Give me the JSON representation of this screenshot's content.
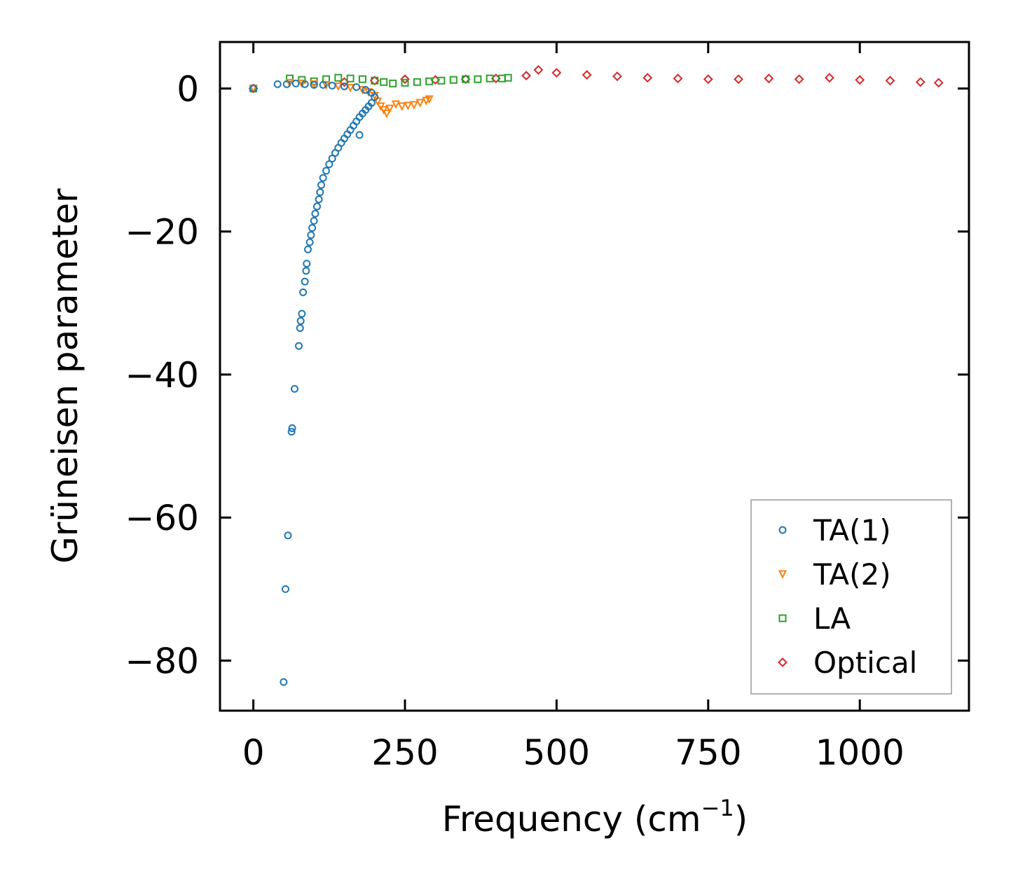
{
  "chart_data": {
    "type": "scatter",
    "xlabel": "Frequency (cm",
    "xlabel_unit_exp": "−1",
    "xlabel_close": ")",
    "ylabel": "Grüneisen parameter",
    "xlim": [
      -55,
      1180
    ],
    "ylim": [
      -87,
      6.5
    ],
    "xticks": [
      0,
      250,
      500,
      750,
      1000
    ],
    "yticks": [
      0,
      -20,
      -40,
      -60,
      -80
    ],
    "xtick_labels": [
      "0",
      "250",
      "500",
      "750",
      "1000"
    ],
    "ytick_labels": [
      "0",
      "−20",
      "−40",
      "−60",
      "−80"
    ],
    "legend_position": "lower-right",
    "series": [
      {
        "name": "TA(1)",
        "marker": "circle",
        "color": "#1f77b4",
        "points": [
          [
            0,
            0
          ],
          [
            40,
            0.6
          ],
          [
            55,
            0.6
          ],
          [
            70,
            0.7
          ],
          [
            85,
            0.6
          ],
          [
            100,
            0.5
          ],
          [
            115,
            0.5
          ],
          [
            130,
            0.4
          ],
          [
            150,
            0.3
          ],
          [
            170,
            0.2
          ],
          [
            185,
            -0.2
          ],
          [
            195,
            -0.6
          ],
          [
            200,
            -1.2
          ],
          [
            195,
            -2
          ],
          [
            190,
            -2.5
          ],
          [
            185,
            -3
          ],
          [
            180,
            -3.5
          ],
          [
            175,
            -4
          ],
          [
            170,
            -4.6
          ],
          [
            165,
            -5.2
          ],
          [
            175,
            -6.5
          ],
          [
            160,
            -5.8
          ],
          [
            155,
            -6.4
          ],
          [
            150,
            -7
          ],
          [
            145,
            -7.6
          ],
          [
            140,
            -8.3
          ],
          [
            135,
            -9
          ],
          [
            130,
            -9.8
          ],
          [
            125,
            -10.6
          ],
          [
            120,
            -11.5
          ],
          [
            115,
            -12.5
          ],
          [
            112,
            -13.5
          ],
          [
            110,
            -14.5
          ],
          [
            108,
            -15.5
          ],
          [
            105,
            -16.5
          ],
          [
            102,
            -17.5
          ],
          [
            100,
            -18.5
          ],
          [
            97,
            -19.5
          ],
          [
            95,
            -20.5
          ],
          [
            93,
            -21.5
          ],
          [
            90,
            -22.5
          ],
          [
            88,
            -24.5
          ],
          [
            87,
            -25.5
          ],
          [
            85,
            -27
          ],
          [
            82,
            -28.5
          ],
          [
            80,
            -31.5
          ],
          [
            78,
            -32.5
          ],
          [
            77,
            -33.5
          ],
          [
            75,
            -36
          ],
          [
            68,
            -42
          ],
          [
            64,
            -47.5
          ],
          [
            63,
            -48
          ],
          [
            57,
            -62.5
          ],
          [
            53,
            -70
          ],
          [
            50,
            -83
          ]
        ]
      },
      {
        "name": "TA(2)",
        "marker": "triangle-down",
        "color": "#ff7f0e",
        "points": [
          [
            0,
            0
          ],
          [
            60,
            0.8
          ],
          [
            80,
            0.7
          ],
          [
            100,
            0.6
          ],
          [
            120,
            0.5
          ],
          [
            140,
            0.3
          ],
          [
            160,
            0.1
          ],
          [
            180,
            -0.2
          ],
          [
            190,
            -0.5
          ],
          [
            200,
            -1
          ],
          [
            205,
            -1.8
          ],
          [
            210,
            -2.5
          ],
          [
            215,
            -3
          ],
          [
            220,
            -3.5
          ],
          [
            225,
            -2.8
          ],
          [
            235,
            -2.2
          ],
          [
            245,
            -2.5
          ],
          [
            255,
            -2.4
          ],
          [
            265,
            -2.3
          ],
          [
            275,
            -2
          ],
          [
            285,
            -1.7
          ],
          [
            290,
            -1.5
          ]
        ]
      },
      {
        "name": "LA",
        "marker": "square",
        "color": "#2ca02c",
        "points": [
          [
            0,
            0
          ],
          [
            60,
            1.4
          ],
          [
            80,
            1.2
          ],
          [
            100,
            1.0
          ],
          [
            120,
            1.3
          ],
          [
            140,
            1.5
          ],
          [
            160,
            1.4
          ],
          [
            180,
            1.3
          ],
          [
            200,
            1.1
          ],
          [
            215,
            0.9
          ],
          [
            230,
            0.7
          ],
          [
            250,
            0.8
          ],
          [
            270,
            0.9
          ],
          [
            290,
            1.0
          ],
          [
            310,
            1.1
          ],
          [
            330,
            1.2
          ],
          [
            350,
            1.3
          ],
          [
            370,
            1.3
          ],
          [
            390,
            1.4
          ],
          [
            410,
            1.4
          ],
          [
            420,
            1.5
          ]
        ]
      },
      {
        "name": "Optical",
        "marker": "diamond",
        "color": "#d62728",
        "points": [
          [
            0,
            0
          ],
          [
            150,
            0.9
          ],
          [
            200,
            1.1
          ],
          [
            250,
            1.3
          ],
          [
            300,
            1.2
          ],
          [
            350,
            1.3
          ],
          [
            400,
            1.4
          ],
          [
            450,
            1.8
          ],
          [
            470,
            2.6
          ],
          [
            500,
            2.2
          ],
          [
            550,
            1.9
          ],
          [
            600,
            1.7
          ],
          [
            650,
            1.5
          ],
          [
            700,
            1.4
          ],
          [
            750,
            1.3
          ],
          [
            800,
            1.3
          ],
          [
            850,
            1.4
          ],
          [
            900,
            1.3
          ],
          [
            950,
            1.5
          ],
          [
            1000,
            1.2
          ],
          [
            1050,
            1.1
          ],
          [
            1100,
            0.9
          ],
          [
            1130,
            0.8
          ]
        ]
      }
    ]
  }
}
